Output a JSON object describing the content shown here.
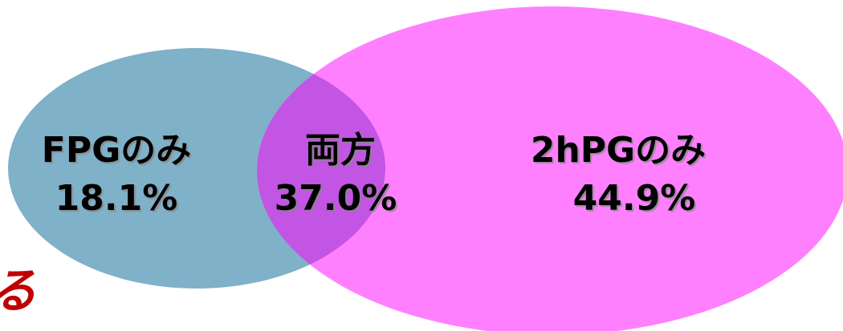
{
  "regions": [
    {
      "label": "FPGのみ",
      "value": "18.1%"
    },
    {
      "label": "両方",
      "value": "37.0%"
    },
    {
      "label": "2hPGのみ",
      "value": "44.9%"
    }
  ],
  "fragment": "る"
}
